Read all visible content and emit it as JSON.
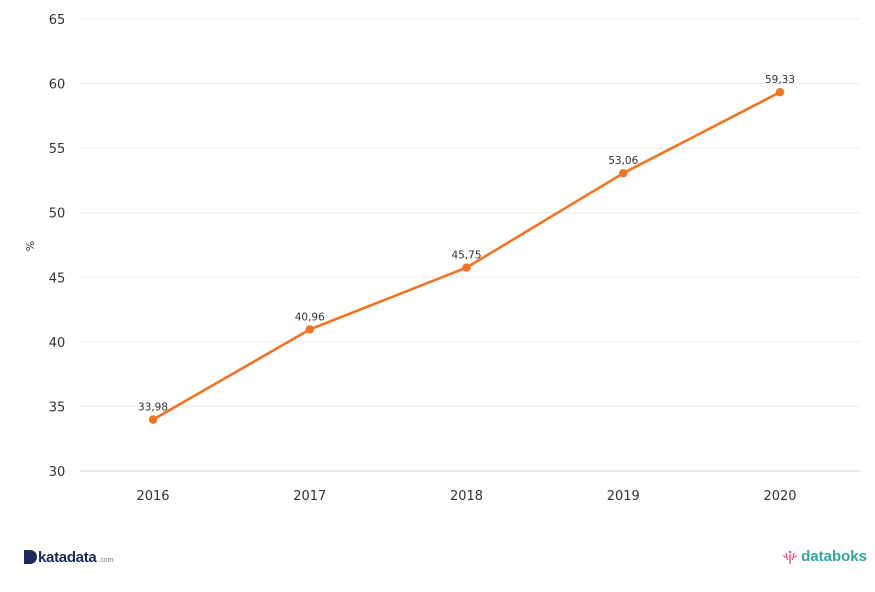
{
  "chart_data": {
    "type": "line",
    "title": "",
    "xlabel": "",
    "ylabel": "%",
    "categories": [
      "2016",
      "2017",
      "2018",
      "2019",
      "2020"
    ],
    "series": [
      {
        "values": [
          33.98,
          40.96,
          45.75,
          53.06,
          59.33
        ],
        "labels": [
          "33,98",
          "40,96",
          "45,75",
          "53,06",
          "59,33"
        ]
      }
    ],
    "ylim": [
      30,
      65
    ],
    "yticks": [
      "30",
      "35",
      "40",
      "45",
      "50",
      "55",
      "60",
      "65"
    ],
    "ytick_values": [
      30,
      35,
      40,
      45,
      50,
      55,
      60,
      65
    ],
    "grid": true,
    "line_color": "#f47321"
  },
  "branding": {
    "left_logo": "katadata",
    "left_logo_suffix": ".com",
    "right_logo": "databoks"
  }
}
